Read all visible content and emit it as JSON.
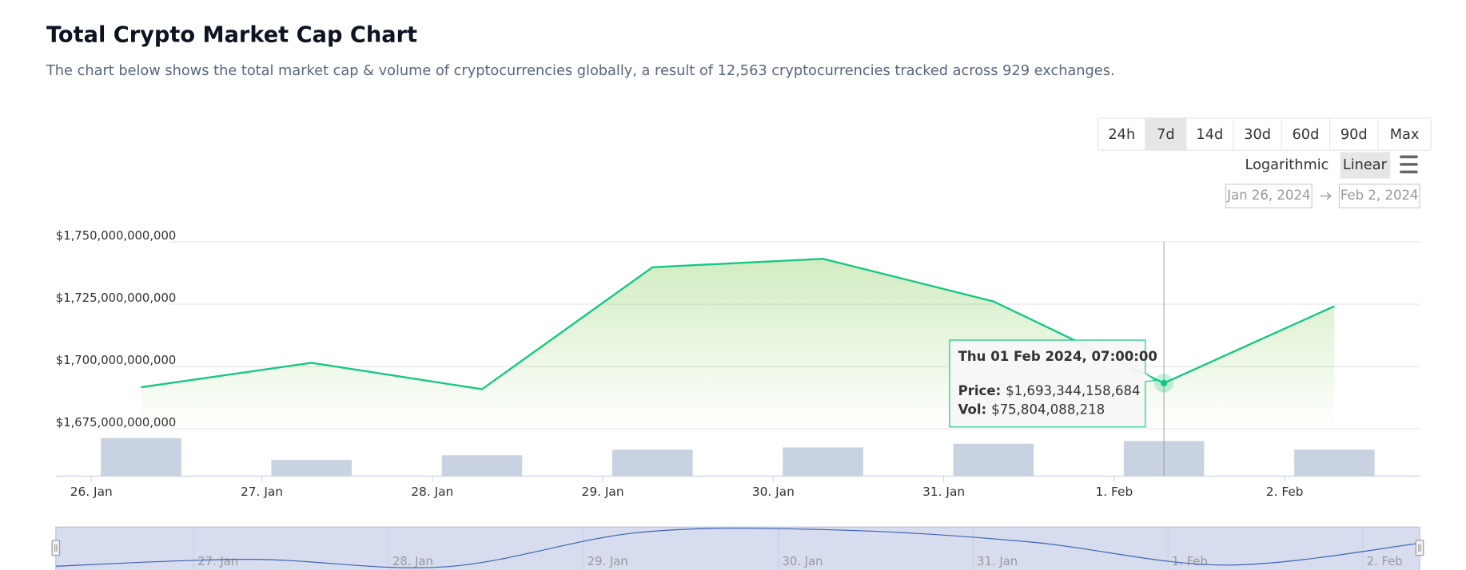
{
  "header": {
    "title": "Total Crypto Market Cap Chart",
    "subtitle": [
      "The chart below shows the total market cap & volume of cryptocurrencies globally, a result of ",
      "12,563",
      " cryptocurrencies tracked across ",
      "929",
      " exchanges."
    ]
  },
  "controls": {
    "ranges": [
      "24h",
      "7d",
      "14d",
      "30d",
      "60d",
      "90d",
      "Max"
    ],
    "active_range": "7d",
    "scales": [
      "Logarithmic",
      "Linear"
    ],
    "active_scale": "Linear",
    "date_from": "Jan 26, 2024",
    "date_to": "Feb 2, 2024"
  },
  "chart_data": {
    "type": "line",
    "x": [
      "2024-01-26T07:00",
      "2024-01-27T07:00",
      "2024-01-28T07:00",
      "2024-01-29T07:00",
      "2024-01-30T07:00",
      "2024-01-31T07:00",
      "2024-02-01T07:00",
      "2024-02-02T07:00"
    ],
    "series": [
      {
        "color": "#16c784",
        "values": [
          1691700000000,
          1701500000000,
          1690900000000,
          1739800000000,
          1743200000000,
          1726100000000,
          1693344158684,
          1724200000000
        ]
      },
      {
        "type": "bar",
        "axis": "y2",
        "color": "#c8d2e0",
        "values": [
          82000000000,
          35000000000,
          45000000000,
          57000000000,
          62000000000,
          70000000000,
          75804088218,
          57000000000
        ]
      }
    ],
    "xlim": [
      "2024-01-25T19:00",
      "2024-02-02T19:00"
    ],
    "xticks": [
      {
        "value": "2024-01-26T00:00",
        "label": "26. Jan"
      },
      {
        "value": "2024-01-27T00:00",
        "label": "27. Jan"
      },
      {
        "value": "2024-01-28T00:00",
        "label": "28. Jan"
      },
      {
        "value": "2024-01-29T00:00",
        "label": "29. Jan"
      },
      {
        "value": "2024-01-30T00:00",
        "label": "30. Jan"
      },
      {
        "value": "2024-01-31T00:00",
        "label": "31. Jan"
      },
      {
        "value": "2024-02-01T00:00",
        "label": "1. Feb"
      },
      {
        "value": "2024-02-02T00:00",
        "label": "2. Feb"
      }
    ],
    "ylim": [
      1675000000000,
      1750000000000
    ],
    "yticks": [
      {
        "value": 1675000000000,
        "label": "$1,675,000,000,000"
      },
      {
        "value": 1700000000000,
        "label": "$1,700,000,000,000"
      },
      {
        "value": 1725000000000,
        "label": "$1,725,000,000,000"
      },
      {
        "value": 1750000000000,
        "label": "$1,750,000,000,000"
      }
    ],
    "y2lim": [
      0,
      100000000000
    ],
    "grid": true,
    "tooltip": {
      "x": "2024-02-01T07:00",
      "title": "Thu 01 Feb 2024, 07:00:00",
      "price_label": "Price:",
      "price": "$1,693,344,158,684",
      "vol_label": "Vol:",
      "vol": "$75,804,088,218"
    }
  }
}
